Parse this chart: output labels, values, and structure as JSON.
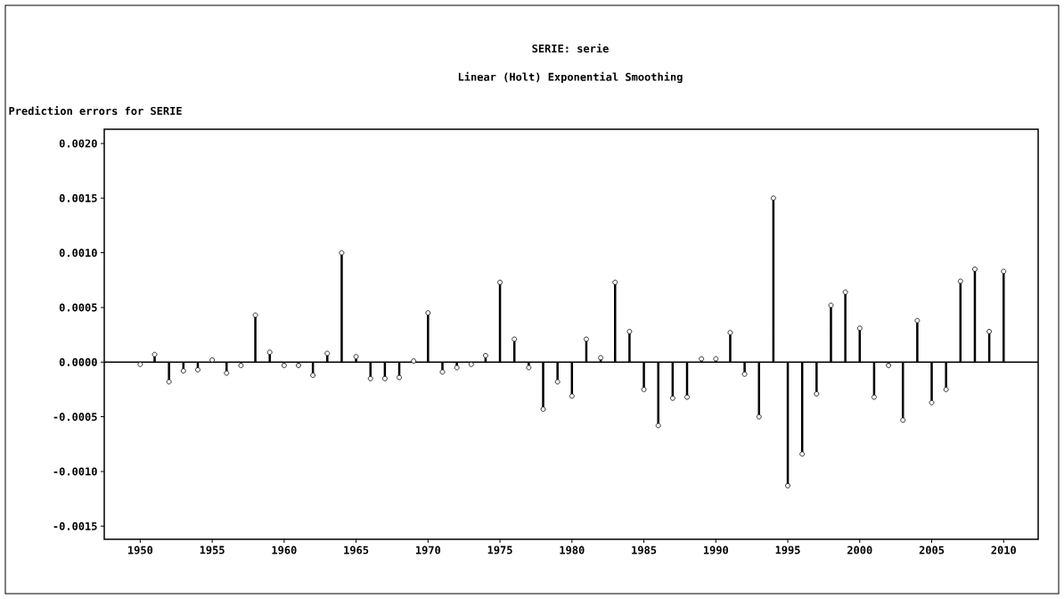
{
  "chart_data": {
    "type": "lollipop",
    "title": "SERIE: serie",
    "subtitle": "Linear (Holt) Exponential Smoothing",
    "ylabel": "Prediction errors for SERIE",
    "x": [
      1950,
      1951,
      1952,
      1953,
      1954,
      1955,
      1956,
      1957,
      1958,
      1959,
      1960,
      1961,
      1962,
      1963,
      1964,
      1965,
      1966,
      1967,
      1968,
      1969,
      1970,
      1971,
      1972,
      1973,
      1974,
      1975,
      1976,
      1977,
      1978,
      1979,
      1980,
      1981,
      1982,
      1983,
      1984,
      1985,
      1986,
      1987,
      1988,
      1989,
      1990,
      1991,
      1992,
      1993,
      1994,
      1995,
      1996,
      1997,
      1998,
      1999,
      2000,
      2001,
      2002,
      2003,
      2004,
      2005,
      2006,
      2007,
      2008,
      2009,
      2010
    ],
    "values": [
      -2e-05,
      7e-05,
      -0.00018,
      -8e-05,
      -7e-05,
      2e-05,
      -0.0001,
      -3e-05,
      0.00043,
      9e-05,
      -3e-05,
      -3e-05,
      -0.00012,
      8e-05,
      0.001,
      5e-05,
      -0.00015,
      -0.00015,
      -0.00014,
      1e-05,
      0.00045,
      -9e-05,
      -5e-05,
      -2e-05,
      6e-05,
      0.00073,
      0.00021,
      -5e-05,
      -0.00043,
      -0.00018,
      -0.00031,
      0.00021,
      4e-05,
      0.00073,
      0.00028,
      -0.00025,
      -0.00058,
      -0.00033,
      -0.00032,
      3e-05,
      3e-05,
      0.00027,
      -0.00011,
      -0.0005,
      0.0015,
      -0.00113,
      -0.00084,
      -0.00029,
      0.00052,
      0.00064,
      0.00031,
      -0.00032,
      -3e-05,
      -0.00053,
      0.00038,
      -0.00037,
      -0.00025,
      0.00074,
      0.00085,
      0.00028,
      0.00083
    ],
    "color": "#000000",
    "marker": "circle",
    "xlim": [
      1947.5,
      2012.4
    ],
    "ylim": [
      -0.00162,
      0.00213
    ],
    "xticks": [
      1950,
      1955,
      1960,
      1965,
      1970,
      1975,
      1980,
      1985,
      1990,
      1995,
      2000,
      2005,
      2010
    ],
    "yticks": [
      {
        "value": -0.0015,
        "label": "-0.0015"
      },
      {
        "value": -0.001,
        "label": "-0.0010"
      },
      {
        "value": -0.0005,
        "label": "-0.0005"
      },
      {
        "value": 0,
        "label": "0.0000"
      },
      {
        "value": 0.0005,
        "label": "0.0005"
      },
      {
        "value": 0.001,
        "label": "0.0010"
      },
      {
        "value": 0.0015,
        "label": "0.0015"
      },
      {
        "value": 0.002,
        "label": "0.0020"
      }
    ]
  }
}
